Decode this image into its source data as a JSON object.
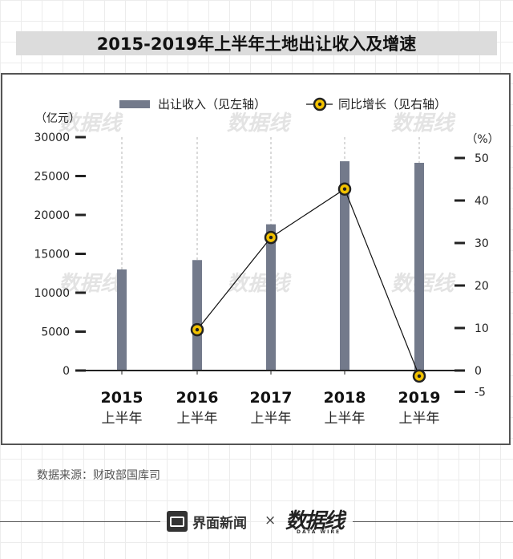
{
  "title": "2015-2019年上半年土地出让收入及增速",
  "source": "数据来源：财政部国库司",
  "footer": {
    "brand_jiemian": "界面新闻",
    "separator": "×",
    "brand_datawire": "数据线",
    "brand_datawire_sub": "DATA WIRE"
  },
  "watermark_text": "数据线",
  "colors": {
    "bar": "#737a8b",
    "line": "#111111",
    "marker_fill": "#f2c200",
    "marker_ring": "#222222",
    "axis": "#222222",
    "title_bg": "#dcdcdc"
  },
  "chart_data": {
    "type": "bar+line",
    "categories": [
      "2015\n上半年",
      "2016\n上半年",
      "2017\n上半年",
      "2018\n上半年",
      "2019\n上半年"
    ],
    "category_years": [
      "2015",
      "2016",
      "2017",
      "2018",
      "2019"
    ],
    "category_sub": "上半年",
    "series": [
      {
        "name": "出让收入（见左轴）",
        "type": "bar",
        "axis": "left",
        "values": [
          13000,
          14200,
          18800,
          26900,
          26700
        ]
      },
      {
        "name": "同比增长（见右轴）",
        "type": "line",
        "axis": "right",
        "values": [
          null,
          9.6,
          31.3,
          42.7,
          -1.3
        ]
      }
    ],
    "left_axis": {
      "unit_label": "（亿元）",
      "ylim": [
        0,
        30000
      ],
      "ticks": [
        0,
        5000,
        10000,
        15000,
        20000,
        25000,
        30000
      ]
    },
    "right_axis": {
      "unit_label": "（%）",
      "ylim": [
        -5,
        50
      ],
      "ticks": [
        -5,
        0,
        10,
        20,
        30,
        40,
        50
      ]
    },
    "grid": "vertical dashed per category",
    "legend_position": "top"
  }
}
